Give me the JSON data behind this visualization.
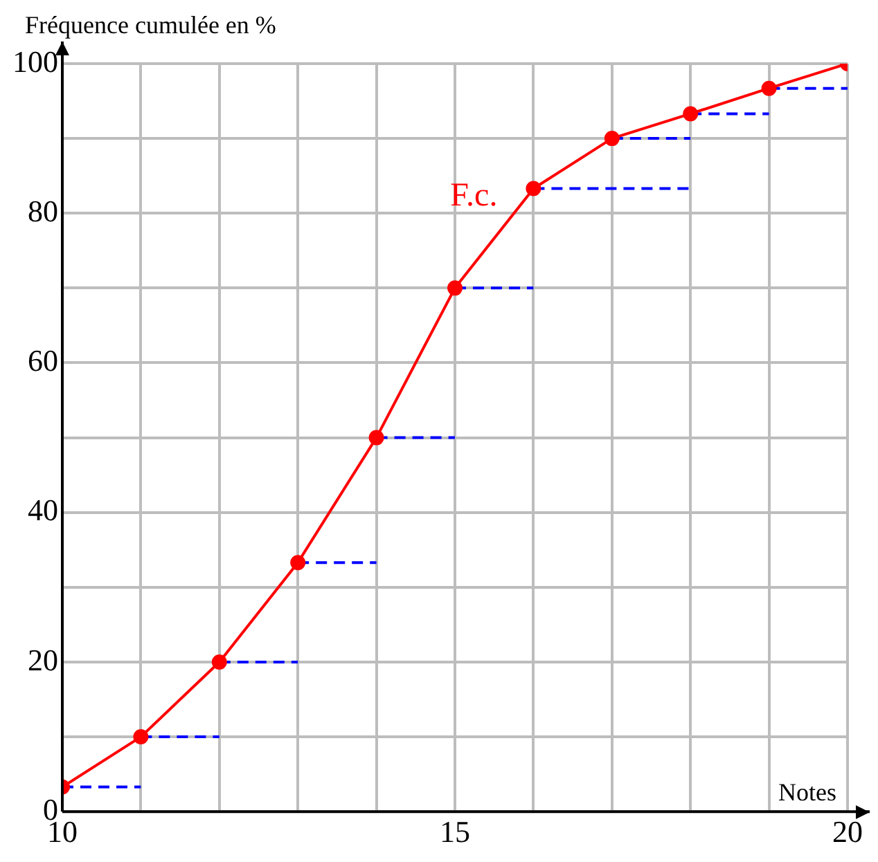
{
  "chart_data": {
    "type": "line",
    "xlabel": "Notes",
    "ylabel": "Fréquence cumulée en %",
    "xlim": [
      10,
      20
    ],
    "ylim": [
      0,
      100
    ],
    "xticks": [
      10,
      {
        "value": 11,
        "label": null
      },
      {
        "value": 12,
        "label": null
      },
      {
        "value": 13,
        "label": null
      },
      {
        "value": 14,
        "label": null
      },
      15,
      {
        "value": 16,
        "label": null
      },
      {
        "value": 17,
        "label": null
      },
      {
        "value": 18,
        "label": null
      },
      {
        "value": 19,
        "label": null
      },
      20
    ],
    "yticks": [
      0,
      {
        "value": 10,
        "label": null
      },
      20,
      {
        "value": 30,
        "label": null
      },
      40,
      {
        "value": 50,
        "label": null
      },
      60,
      {
        "value": 70,
        "label": null
      },
      80,
      {
        "value": 90,
        "label": null
      },
      100
    ],
    "grid": true,
    "legend": false,
    "series": [
      {
        "name": "F.c.",
        "color": "#ff0000",
        "marker": "circle",
        "line_style": "solid",
        "x": [
          10,
          11,
          12,
          13,
          14,
          15,
          16,
          17,
          18,
          19,
          20
        ],
        "values": [
          3.3,
          10,
          20,
          33.3,
          50,
          70,
          83.3,
          90,
          93.3,
          96.7,
          100
        ]
      },
      {
        "color": "#0000ff",
        "marker": "none",
        "line_style": "dashed",
        "x": [
          10,
          11
        ],
        "values": [
          3.3,
          3.3
        ]
      },
      {
        "color": "#0000ff",
        "marker": "none",
        "line_style": "dashed",
        "x": [
          11,
          12
        ],
        "values": [
          10,
          10
        ]
      },
      {
        "color": "#0000ff",
        "marker": "none",
        "line_style": "dashed",
        "x": [
          12,
          13
        ],
        "values": [
          20,
          20
        ]
      },
      {
        "color": "#0000ff",
        "marker": "none",
        "line_style": "dashed",
        "x": [
          13,
          14
        ],
        "values": [
          33.3,
          33.3
        ]
      },
      {
        "color": "#0000ff",
        "marker": "none",
        "line_style": "dashed",
        "x": [
          14,
          15
        ],
        "values": [
          50,
          50
        ]
      },
      {
        "color": "#0000ff",
        "marker": "none",
        "line_style": "dashed",
        "x": [
          15,
          16
        ],
        "values": [
          70,
          70
        ]
      },
      {
        "color": "#0000ff",
        "marker": "none",
        "line_style": "dashed",
        "x": [
          16,
          18
        ],
        "values": [
          83.3,
          83.3
        ]
      },
      {
        "color": "#0000ff",
        "marker": "none",
        "line_style": "dashed",
        "x": [
          17,
          18
        ],
        "values": [
          90,
          90
        ]
      },
      {
        "color": "#0000ff",
        "marker": "none",
        "line_style": "dashed",
        "x": [
          18,
          19
        ],
        "values": [
          93.3,
          93.3
        ]
      },
      {
        "color": "#0000ff",
        "marker": "none",
        "line_style": "dashed",
        "x": [
          19,
          20
        ],
        "values": [
          96.7,
          96.7
        ]
      }
    ]
  }
}
